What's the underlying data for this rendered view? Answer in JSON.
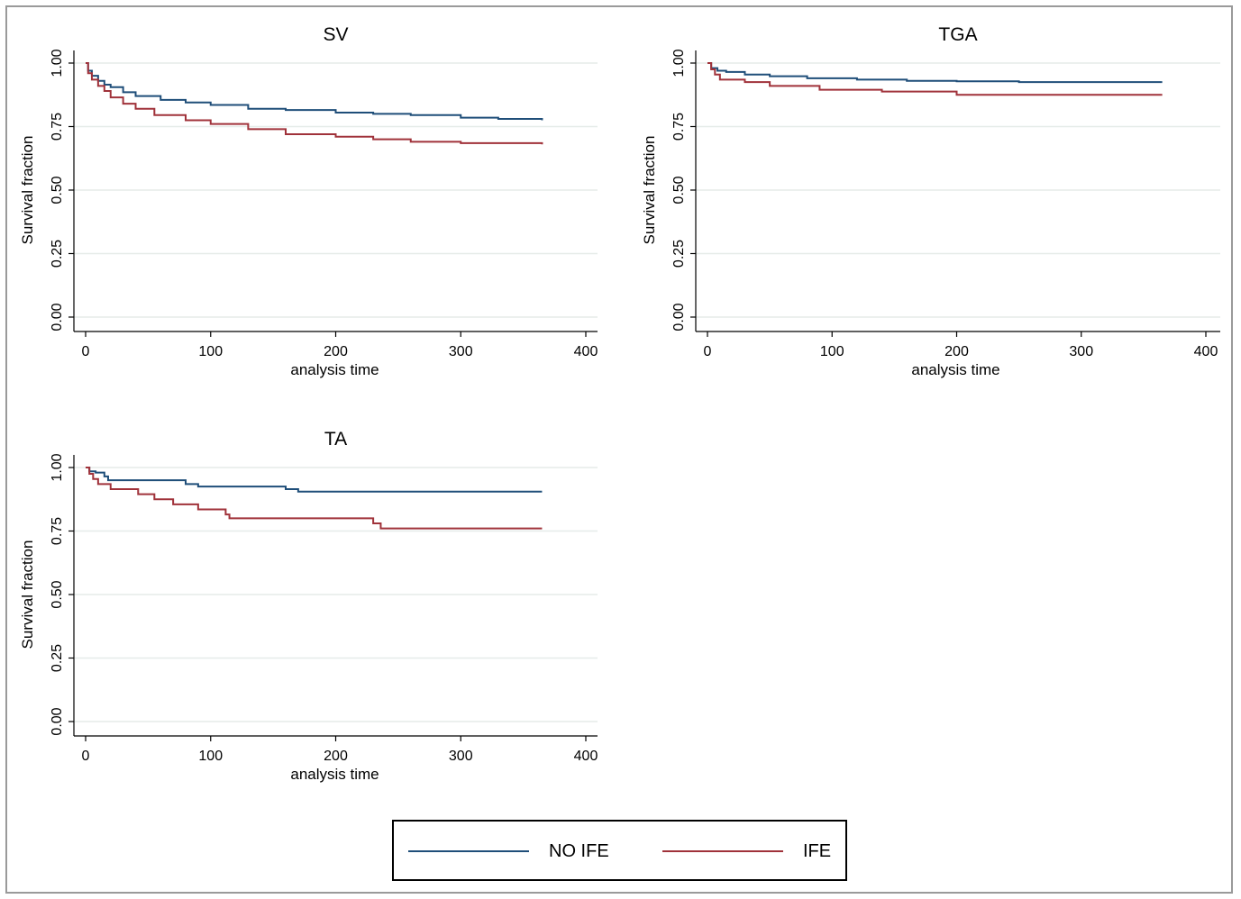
{
  "colors": {
    "no_ife": "#1f4e79",
    "ife": "#a0323a",
    "grid": "#e6ece9"
  },
  "legend": {
    "entries": [
      "NO IFE",
      "IFE"
    ]
  },
  "chart_data": [
    {
      "type": "line",
      "title": "SV",
      "xlabel": "analysis time",
      "ylabel": "Survival fraction",
      "xlim": [
        0,
        400
      ],
      "ylim": [
        0,
        1
      ],
      "xticks": [
        "0",
        "100",
        "200",
        "300",
        "400"
      ],
      "yticks": [
        "0.00",
        "0.25",
        "0.50",
        "0.75",
        "1.00"
      ],
      "grid": true,
      "series": [
        {
          "name": "NO IFE",
          "x": [
            0,
            2,
            5,
            10,
            15,
            20,
            30,
            40,
            60,
            80,
            100,
            130,
            160,
            200,
            230,
            260,
            300,
            330,
            365
          ],
          "y": [
            1.0,
            0.97,
            0.95,
            0.93,
            0.915,
            0.905,
            0.885,
            0.87,
            0.855,
            0.845,
            0.835,
            0.82,
            0.815,
            0.805,
            0.8,
            0.795,
            0.785,
            0.78,
            0.775
          ]
        },
        {
          "name": "IFE",
          "x": [
            0,
            2,
            5,
            10,
            15,
            20,
            30,
            40,
            55,
            80,
            100,
            130,
            160,
            200,
            230,
            260,
            300,
            330,
            365
          ],
          "y": [
            1.0,
            0.96,
            0.935,
            0.91,
            0.89,
            0.865,
            0.84,
            0.82,
            0.795,
            0.775,
            0.76,
            0.74,
            0.72,
            0.71,
            0.7,
            0.69,
            0.685,
            0.685,
            0.68
          ]
        }
      ]
    },
    {
      "type": "line",
      "title": "TGA",
      "xlabel": "analysis time",
      "ylabel": "Survival fraction",
      "xlim": [
        0,
        400
      ],
      "ylim": [
        0,
        1
      ],
      "xticks": [
        "0",
        "100",
        "200",
        "300",
        "400"
      ],
      "yticks": [
        "0.00",
        "0.25",
        "0.50",
        "0.75",
        "1.00"
      ],
      "grid": true,
      "series": [
        {
          "name": "NO IFE",
          "x": [
            0,
            3,
            8,
            15,
            30,
            50,
            80,
            120,
            160,
            200,
            250,
            300,
            365
          ],
          "y": [
            1.0,
            0.98,
            0.97,
            0.965,
            0.955,
            0.948,
            0.94,
            0.935,
            0.93,
            0.928,
            0.925,
            0.925,
            0.925
          ]
        },
        {
          "name": "IFE",
          "x": [
            0,
            3,
            6,
            10,
            30,
            50,
            90,
            140,
            200,
            250,
            300,
            365
          ],
          "y": [
            1.0,
            0.975,
            0.955,
            0.935,
            0.925,
            0.91,
            0.895,
            0.888,
            0.875,
            0.875,
            0.875,
            0.875
          ]
        }
      ]
    },
    {
      "type": "line",
      "title": "TA",
      "xlabel": "analysis time",
      "ylabel": "Survival fraction",
      "xlim": [
        0,
        400
      ],
      "ylim": [
        0,
        1
      ],
      "xticks": [
        "0",
        "100",
        "200",
        "300",
        "400"
      ],
      "yticks": [
        "0.00",
        "0.25",
        "0.50",
        "0.75",
        "1.00"
      ],
      "grid": true,
      "series": [
        {
          "name": "NO IFE",
          "x": [
            0,
            3,
            8,
            15,
            18,
            80,
            90,
            160,
            170,
            365
          ],
          "y": [
            1.0,
            0.985,
            0.98,
            0.965,
            0.95,
            0.935,
            0.925,
            0.915,
            0.905,
            0.905
          ]
        },
        {
          "name": "IFE",
          "x": [
            0,
            3,
            6,
            10,
            20,
            42,
            55,
            70,
            90,
            112,
            115,
            230,
            236,
            365
          ],
          "y": [
            1.0,
            0.975,
            0.955,
            0.935,
            0.915,
            0.895,
            0.875,
            0.855,
            0.835,
            0.815,
            0.8,
            0.78,
            0.76,
            0.76
          ]
        }
      ]
    }
  ]
}
